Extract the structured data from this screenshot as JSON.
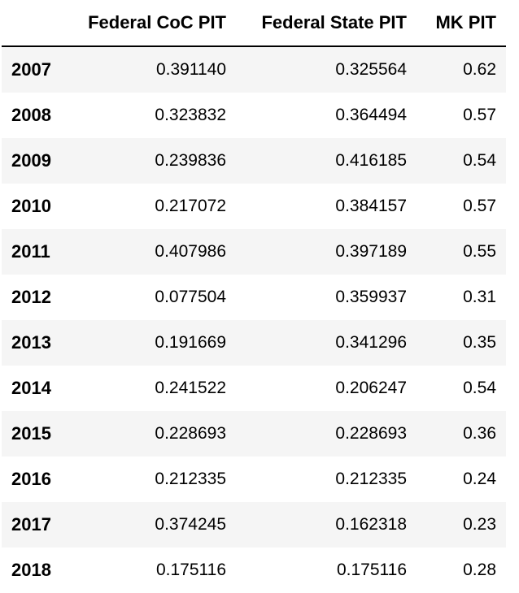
{
  "chart_data": {
    "type": "table",
    "columns": [
      "",
      "Federal CoC PIT",
      "Federal State PIT",
      "MK PIT"
    ],
    "rows": [
      {
        "index": "2007",
        "values": [
          "0.391140",
          "0.325564",
          "0.62"
        ]
      },
      {
        "index": "2008",
        "values": [
          "0.323832",
          "0.364494",
          "0.57"
        ]
      },
      {
        "index": "2009",
        "values": [
          "0.239836",
          "0.416185",
          "0.54"
        ]
      },
      {
        "index": "2010",
        "values": [
          "0.217072",
          "0.384157",
          "0.57"
        ]
      },
      {
        "index": "2011",
        "values": [
          "0.407986",
          "0.397189",
          "0.55"
        ]
      },
      {
        "index": "2012",
        "values": [
          "0.077504",
          "0.359937",
          "0.31"
        ]
      },
      {
        "index": "2013",
        "values": [
          "0.191669",
          "0.341296",
          "0.35"
        ]
      },
      {
        "index": "2014",
        "values": [
          "0.241522",
          "0.206247",
          "0.54"
        ]
      },
      {
        "index": "2015",
        "values": [
          "0.228693",
          "0.228693",
          "0.36"
        ]
      },
      {
        "index": "2016",
        "values": [
          "0.212335",
          "0.212335",
          "0.24"
        ]
      },
      {
        "index": "2017",
        "values": [
          "0.374245",
          "0.162318",
          "0.23"
        ]
      },
      {
        "index": "2018",
        "values": [
          "0.175116",
          "0.175116",
          "0.28"
        ]
      }
    ]
  }
}
